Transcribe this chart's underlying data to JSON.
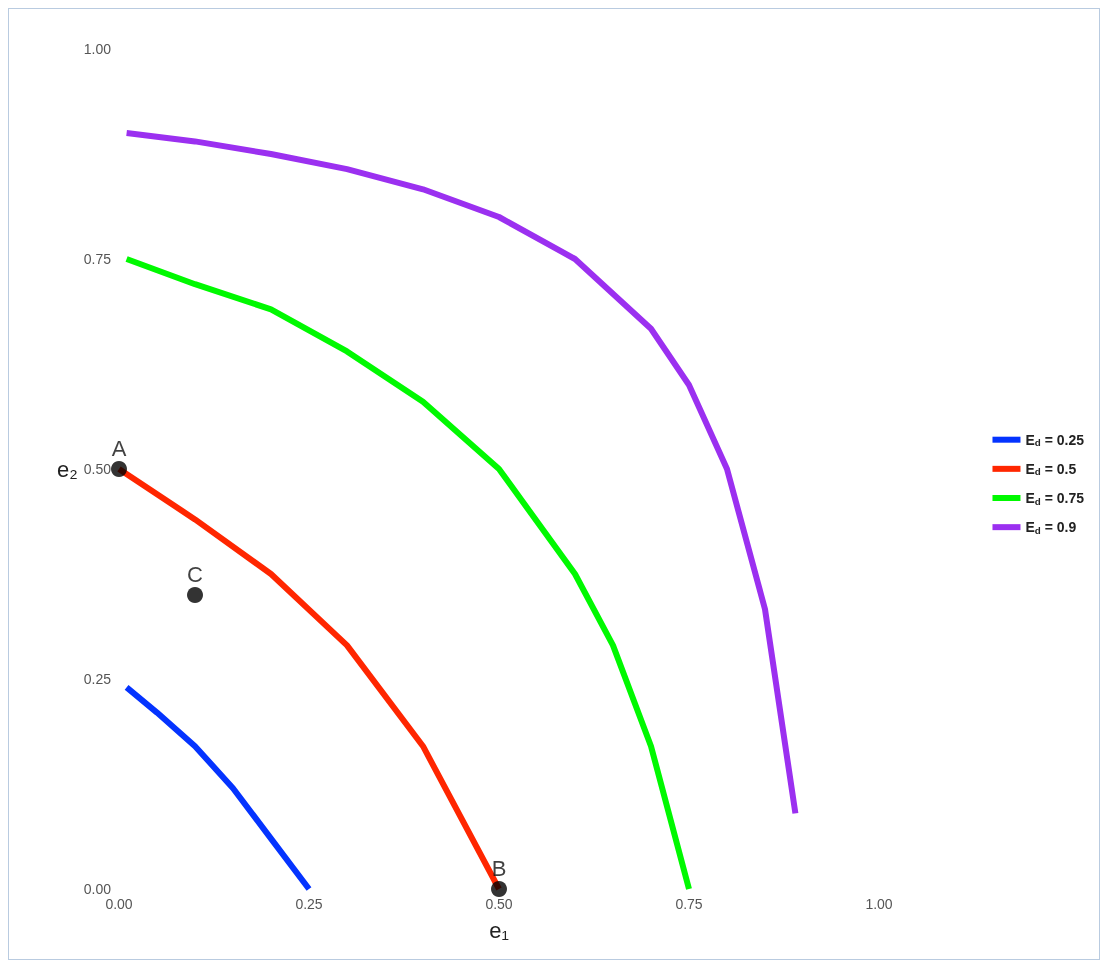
{
  "chart_data": {
    "type": "line",
    "xlabel": "e₁",
    "ylabel": "e₂",
    "xlim": [
      0,
      1
    ],
    "ylim": [
      0,
      1
    ],
    "xticks": [
      {
        "value": 0,
        "label": "0.00"
      },
      {
        "value": 0.25,
        "label": "0.25"
      },
      {
        "value": 0.5,
        "label": "0.50"
      },
      {
        "value": 0.75,
        "label": "0.75"
      },
      {
        "value": 1,
        "label": "1.00"
      }
    ],
    "yticks": [
      {
        "value": 0,
        "label": "0.00"
      },
      {
        "value": 0.25,
        "label": "0.25"
      },
      {
        "value": 0.5,
        "label": "0.50"
      },
      {
        "value": 0.75,
        "label": "0.75"
      },
      {
        "value": 1,
        "label": "1.00"
      }
    ],
    "grid": false,
    "legend": "right",
    "marker": "none",
    "line_style": "solid",
    "series": [
      {
        "name": "E$_{d}$ = 0.25",
        "color": "#0433ff",
        "x": [
          0.01,
          0.05,
          0.1,
          0.15,
          0.2,
          0.25
        ],
        "values": [
          0.24,
          0.21,
          0.17,
          0.12,
          0.06,
          0
        ]
      },
      {
        "name": "E$_{d}$ = 0.5",
        "color": "#ff2600",
        "x": [
          0,
          0.1,
          0.2,
          0.3,
          0.4,
          0.5
        ],
        "values": [
          0.5,
          0.44,
          0.375,
          0.29,
          0.17,
          0
        ]
      },
      {
        "name": "E$_{d}$ = 0.75",
        "color": "#00f900",
        "x": [
          0.01,
          0.1,
          0.2,
          0.3,
          0.4,
          0.5,
          0.6,
          0.65,
          0.7,
          0.75
        ],
        "values": [
          0.75,
          0.72,
          0.69,
          0.64,
          0.58,
          0.5,
          0.375,
          0.29,
          0.17,
          0
        ]
      },
      {
        "name": "E$_{d}$ = 0.9",
        "color": "#9b30f0",
        "x": [
          0.01,
          0.1,
          0.2,
          0.3,
          0.4,
          0.5,
          0.6,
          0.7,
          0.75,
          0.8,
          0.85,
          0.89
        ],
        "values": [
          0.9,
          0.89,
          0.875,
          0.857,
          0.833,
          0.8,
          0.75,
          0.667,
          0.6,
          0.5,
          0.333,
          0.09
        ]
      },
      {
        "type": "scatter",
        "marker": "circle",
        "color": "#000000",
        "x": [
          0,
          0.5,
          0.1
        ],
        "values": [
          0.5,
          0,
          0.35
        ]
      }
    ],
    "annotations": [
      {
        "text": "A",
        "x": 0,
        "y": 0.5
      },
      {
        "text": "B",
        "x": 0.5,
        "y": 0
      },
      {
        "text": "C",
        "x": 0.1,
        "y": 0.35
      }
    ]
  }
}
